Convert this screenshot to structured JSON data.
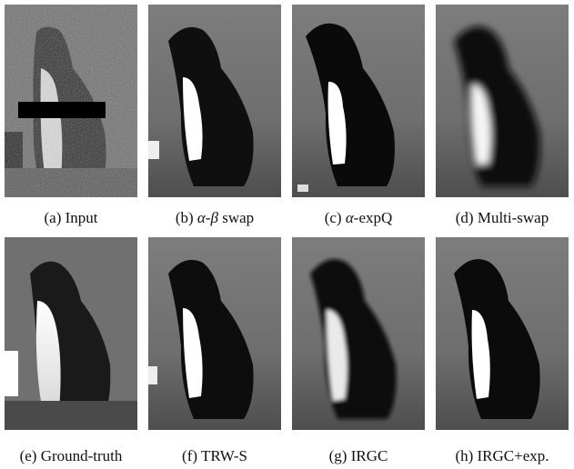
{
  "figure": {
    "panels": [
      {
        "id": "a",
        "caption_pre": "(a) Input",
        "caption_math": "",
        "caption_post": ""
      },
      {
        "id": "b",
        "caption_pre": "(b) ",
        "caption_math": "α-β",
        "caption_post": " swap"
      },
      {
        "id": "c",
        "caption_pre": "(c) ",
        "caption_math": "α",
        "caption_post": "-expQ"
      },
      {
        "id": "d",
        "caption_pre": "(d) Multi-swap",
        "caption_math": "",
        "caption_post": ""
      },
      {
        "id": "e",
        "caption_pre": "(e) Ground-truth",
        "caption_math": "",
        "caption_post": ""
      },
      {
        "id": "f",
        "caption_pre": "(f) TRW-S",
        "caption_math": "",
        "caption_post": ""
      },
      {
        "id": "g",
        "caption_pre": "(g) IRGC",
        "caption_math": "",
        "caption_post": ""
      },
      {
        "id": "h",
        "caption_pre": "(h) IRGC+exp.",
        "caption_math": "",
        "caption_post": ""
      }
    ]
  }
}
